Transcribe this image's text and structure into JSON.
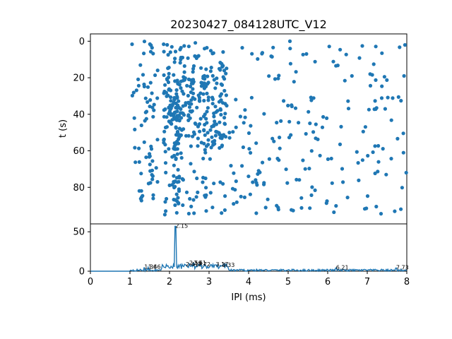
{
  "chart_data": [
    {
      "type": "scatter",
      "title": "20230427_084128UTC_V12",
      "xlabel": "",
      "ylabel": "t (s)",
      "xlim": [
        0,
        8
      ],
      "ylim": [
        0,
        100
      ],
      "y_inverted": true,
      "y_ticks": [
        "0",
        "20",
        "40",
        "60",
        "80"
      ],
      "marker_color": "#1f77b4",
      "point_count": 600,
      "description_clusters": [
        {
          "x_range": [
            1.0,
            1.6
          ],
          "t_range": [
            0,
            95
          ]
        },
        {
          "x_range": [
            1.8,
            3.5
          ],
          "t_range": [
            0,
            95
          ],
          "dense": true
        },
        {
          "x_range": [
            3.5,
            8.0
          ],
          "t_range": [
            0,
            95
          ],
          "sparse": true
        }
      ]
    },
    {
      "type": "line",
      "xlabel": "IPI (ms)",
      "ylabel": "",
      "xlim": [
        0,
        8
      ],
      "ylim": [
        0,
        60
      ],
      "x_ticks": [
        "0",
        "1",
        "2",
        "3",
        "4",
        "5",
        "6",
        "7",
        "8"
      ],
      "y_ticks": [
        "0",
        "50"
      ],
      "line_color": "#1f77b4",
      "peaks": [
        {
          "x": 2.15,
          "y": 57,
          "label": "2.15"
        },
        {
          "x": 1.36,
          "y": 5,
          "label": "1.36"
        },
        {
          "x": 1.46,
          "y": 5,
          "label": "1.46"
        },
        {
          "x": 2.41,
          "y": 8,
          "label": "2.41"
        },
        {
          "x": 2.5,
          "y": 10,
          "label": "2.50"
        },
        {
          "x": 2.61,
          "y": 10,
          "label": "2.61"
        },
        {
          "x": 2.72,
          "y": 8,
          "label": "2.72"
        },
        {
          "x": 3.17,
          "y": 8,
          "label": "3.17"
        },
        {
          "x": 3.33,
          "y": 7,
          "label": "3.33"
        },
        {
          "x": 6.21,
          "y": 4,
          "label": "6.21"
        },
        {
          "x": 7.73,
          "y": 4,
          "label": "7.73"
        }
      ]
    }
  ]
}
